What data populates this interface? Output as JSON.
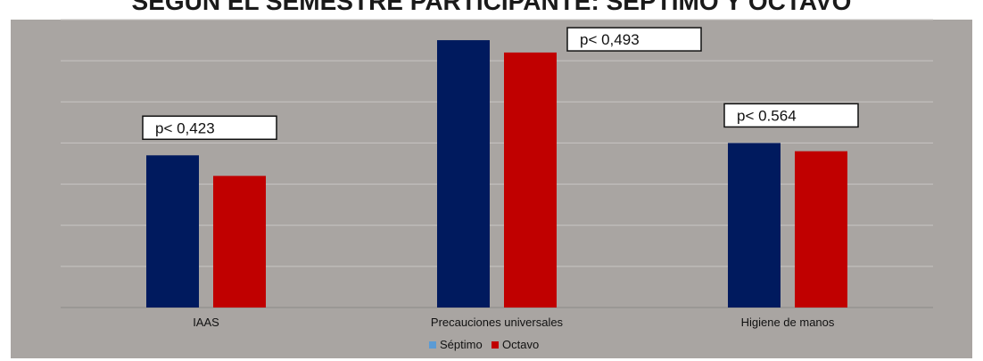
{
  "chart_data": {
    "type": "bar",
    "title": "SEGÚN EL SEMESTRE PARTICIPANTE: SÉPTIMO Y OCTAVO",
    "categories": [
      "IAAS",
      "Precauciones universales",
      "Higiene de manos"
    ],
    "series": [
      {
        "name": "Séptimo",
        "color": "#001a5e",
        "values": [
          37,
          65,
          40
        ]
      },
      {
        "name": "Octavo",
        "color": "#c00000",
        "values": [
          32,
          62,
          38
        ]
      }
    ],
    "annotations": [
      "p< 0,423",
      "p< 0,493",
      "p< 0.564"
    ],
    "ylim": [
      0,
      70
    ],
    "grid": true,
    "legend_position": "bottom-center",
    "plot_background": "#a9a5a2",
    "legend_swatch_colors": [
      "#5b9bd5",
      "#c00000"
    ]
  }
}
